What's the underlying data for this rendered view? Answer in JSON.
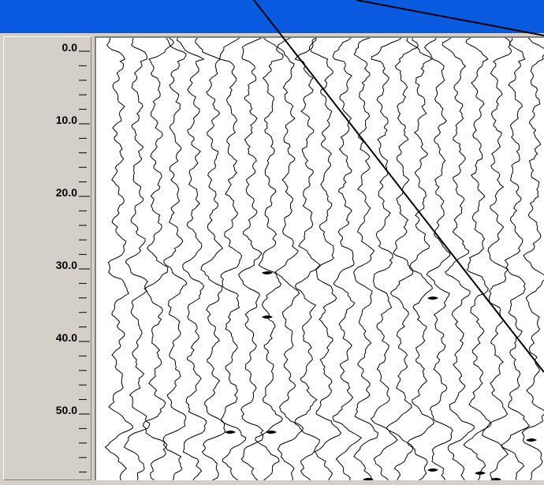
{
  "window": {
    "titlebar_color": "#0a5ae0",
    "frame_color": "#d4d0c8"
  },
  "time_axis": {
    "labels": [
      "0.0",
      "10.0",
      "20.0",
      "30.0",
      "40.0",
      "50.0"
    ],
    "values": [
      0,
      10,
      20,
      30,
      40,
      50
    ],
    "max": 60,
    "minor_step": 2
  },
  "seismogram": {
    "trace_count": 24,
    "trace_color": "#000000",
    "background": "#ffffff"
  }
}
